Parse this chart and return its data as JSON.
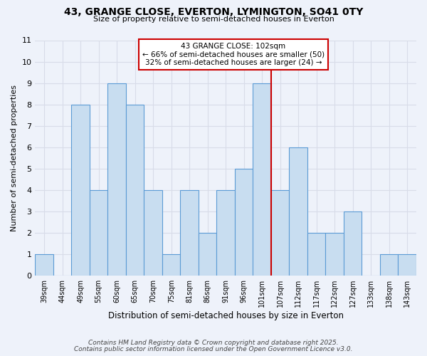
{
  "title": "43, GRANGE CLOSE, EVERTON, LYMINGTON, SO41 0TY",
  "subtitle": "Size of property relative to semi-detached houses in Everton",
  "xlabel": "Distribution of semi-detached houses by size in Everton",
  "ylabel": "Number of semi-detached properties",
  "bar_labels": [
    "39sqm",
    "44sqm",
    "49sqm",
    "55sqm",
    "60sqm",
    "65sqm",
    "70sqm",
    "75sqm",
    "81sqm",
    "86sqm",
    "91sqm",
    "96sqm",
    "101sqm",
    "107sqm",
    "112sqm",
    "117sqm",
    "122sqm",
    "127sqm",
    "133sqm",
    "138sqm",
    "143sqm"
  ],
  "bar_values": [
    1,
    0,
    8,
    4,
    9,
    8,
    4,
    1,
    4,
    2,
    4,
    5,
    9,
    4,
    6,
    2,
    2,
    3,
    0,
    1,
    1
  ],
  "bar_color": "#c8ddf0",
  "bar_edge_color": "#5b9bd5",
  "background_color": "#eef2fa",
  "grid_color": "#d8dce8",
  "ylim": [
    0,
    11
  ],
  "yticks": [
    0,
    1,
    2,
    3,
    4,
    5,
    6,
    7,
    8,
    9,
    10,
    11
  ],
  "property_line_index": 12,
  "property_line_color": "#cc0000",
  "annotation_title": "43 GRANGE CLOSE: 102sqm",
  "annotation_line1": "← 66% of semi-detached houses are smaller (50)",
  "annotation_line2": "32% of semi-detached houses are larger (24) →",
  "annotation_box_color": "#cc0000",
  "footnote1": "Contains HM Land Registry data © Crown copyright and database right 2025.",
  "footnote2": "Contains public sector information licensed under the Open Government Licence v3.0."
}
